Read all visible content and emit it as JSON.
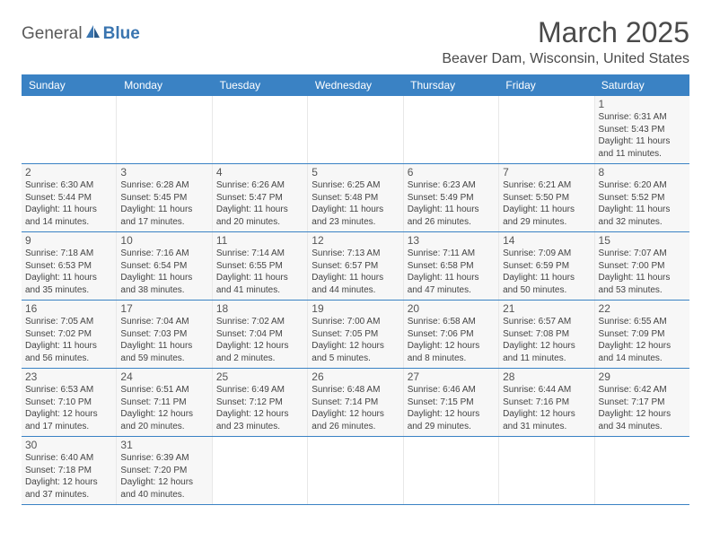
{
  "logo": {
    "part1": "General",
    "part2": "Blue"
  },
  "title": "March 2025",
  "location": "Beaver Dam, Wisconsin, United States",
  "colors": {
    "header_bg": "#3a82c4",
    "header_text": "#ffffff",
    "day_bg": "#f7f7f7",
    "border": "#3a82c4",
    "logo_accent": "#3a75b0",
    "logo_gray": "#5a5a5a"
  },
  "weekdays": [
    "Sunday",
    "Monday",
    "Tuesday",
    "Wednesday",
    "Thursday",
    "Friday",
    "Saturday"
  ],
  "weeks": [
    [
      null,
      null,
      null,
      null,
      null,
      null,
      {
        "n": "1",
        "sr": "Sunrise: 6:31 AM",
        "ss": "Sunset: 5:43 PM",
        "d1": "Daylight: 11 hours",
        "d2": "and 11 minutes."
      }
    ],
    [
      {
        "n": "2",
        "sr": "Sunrise: 6:30 AM",
        "ss": "Sunset: 5:44 PM",
        "d1": "Daylight: 11 hours",
        "d2": "and 14 minutes."
      },
      {
        "n": "3",
        "sr": "Sunrise: 6:28 AM",
        "ss": "Sunset: 5:45 PM",
        "d1": "Daylight: 11 hours",
        "d2": "and 17 minutes."
      },
      {
        "n": "4",
        "sr": "Sunrise: 6:26 AM",
        "ss": "Sunset: 5:47 PM",
        "d1": "Daylight: 11 hours",
        "d2": "and 20 minutes."
      },
      {
        "n": "5",
        "sr": "Sunrise: 6:25 AM",
        "ss": "Sunset: 5:48 PM",
        "d1": "Daylight: 11 hours",
        "d2": "and 23 minutes."
      },
      {
        "n": "6",
        "sr": "Sunrise: 6:23 AM",
        "ss": "Sunset: 5:49 PM",
        "d1": "Daylight: 11 hours",
        "d2": "and 26 minutes."
      },
      {
        "n": "7",
        "sr": "Sunrise: 6:21 AM",
        "ss": "Sunset: 5:50 PM",
        "d1": "Daylight: 11 hours",
        "d2": "and 29 minutes."
      },
      {
        "n": "8",
        "sr": "Sunrise: 6:20 AM",
        "ss": "Sunset: 5:52 PM",
        "d1": "Daylight: 11 hours",
        "d2": "and 32 minutes."
      }
    ],
    [
      {
        "n": "9",
        "sr": "Sunrise: 7:18 AM",
        "ss": "Sunset: 6:53 PM",
        "d1": "Daylight: 11 hours",
        "d2": "and 35 minutes."
      },
      {
        "n": "10",
        "sr": "Sunrise: 7:16 AM",
        "ss": "Sunset: 6:54 PM",
        "d1": "Daylight: 11 hours",
        "d2": "and 38 minutes."
      },
      {
        "n": "11",
        "sr": "Sunrise: 7:14 AM",
        "ss": "Sunset: 6:55 PM",
        "d1": "Daylight: 11 hours",
        "d2": "and 41 minutes."
      },
      {
        "n": "12",
        "sr": "Sunrise: 7:13 AM",
        "ss": "Sunset: 6:57 PM",
        "d1": "Daylight: 11 hours",
        "d2": "and 44 minutes."
      },
      {
        "n": "13",
        "sr": "Sunrise: 7:11 AM",
        "ss": "Sunset: 6:58 PM",
        "d1": "Daylight: 11 hours",
        "d2": "and 47 minutes."
      },
      {
        "n": "14",
        "sr": "Sunrise: 7:09 AM",
        "ss": "Sunset: 6:59 PM",
        "d1": "Daylight: 11 hours",
        "d2": "and 50 minutes."
      },
      {
        "n": "15",
        "sr": "Sunrise: 7:07 AM",
        "ss": "Sunset: 7:00 PM",
        "d1": "Daylight: 11 hours",
        "d2": "and 53 minutes."
      }
    ],
    [
      {
        "n": "16",
        "sr": "Sunrise: 7:05 AM",
        "ss": "Sunset: 7:02 PM",
        "d1": "Daylight: 11 hours",
        "d2": "and 56 minutes."
      },
      {
        "n": "17",
        "sr": "Sunrise: 7:04 AM",
        "ss": "Sunset: 7:03 PM",
        "d1": "Daylight: 11 hours",
        "d2": "and 59 minutes."
      },
      {
        "n": "18",
        "sr": "Sunrise: 7:02 AM",
        "ss": "Sunset: 7:04 PM",
        "d1": "Daylight: 12 hours",
        "d2": "and 2 minutes."
      },
      {
        "n": "19",
        "sr": "Sunrise: 7:00 AM",
        "ss": "Sunset: 7:05 PM",
        "d1": "Daylight: 12 hours",
        "d2": "and 5 minutes."
      },
      {
        "n": "20",
        "sr": "Sunrise: 6:58 AM",
        "ss": "Sunset: 7:06 PM",
        "d1": "Daylight: 12 hours",
        "d2": "and 8 minutes."
      },
      {
        "n": "21",
        "sr": "Sunrise: 6:57 AM",
        "ss": "Sunset: 7:08 PM",
        "d1": "Daylight: 12 hours",
        "d2": "and 11 minutes."
      },
      {
        "n": "22",
        "sr": "Sunrise: 6:55 AM",
        "ss": "Sunset: 7:09 PM",
        "d1": "Daylight: 12 hours",
        "d2": "and 14 minutes."
      }
    ],
    [
      {
        "n": "23",
        "sr": "Sunrise: 6:53 AM",
        "ss": "Sunset: 7:10 PM",
        "d1": "Daylight: 12 hours",
        "d2": "and 17 minutes."
      },
      {
        "n": "24",
        "sr": "Sunrise: 6:51 AM",
        "ss": "Sunset: 7:11 PM",
        "d1": "Daylight: 12 hours",
        "d2": "and 20 minutes."
      },
      {
        "n": "25",
        "sr": "Sunrise: 6:49 AM",
        "ss": "Sunset: 7:12 PM",
        "d1": "Daylight: 12 hours",
        "d2": "and 23 minutes."
      },
      {
        "n": "26",
        "sr": "Sunrise: 6:48 AM",
        "ss": "Sunset: 7:14 PM",
        "d1": "Daylight: 12 hours",
        "d2": "and 26 minutes."
      },
      {
        "n": "27",
        "sr": "Sunrise: 6:46 AM",
        "ss": "Sunset: 7:15 PM",
        "d1": "Daylight: 12 hours",
        "d2": "and 29 minutes."
      },
      {
        "n": "28",
        "sr": "Sunrise: 6:44 AM",
        "ss": "Sunset: 7:16 PM",
        "d1": "Daylight: 12 hours",
        "d2": "and 31 minutes."
      },
      {
        "n": "29",
        "sr": "Sunrise: 6:42 AM",
        "ss": "Sunset: 7:17 PM",
        "d1": "Daylight: 12 hours",
        "d2": "and 34 minutes."
      }
    ],
    [
      {
        "n": "30",
        "sr": "Sunrise: 6:40 AM",
        "ss": "Sunset: 7:18 PM",
        "d1": "Daylight: 12 hours",
        "d2": "and 37 minutes."
      },
      {
        "n": "31",
        "sr": "Sunrise: 6:39 AM",
        "ss": "Sunset: 7:20 PM",
        "d1": "Daylight: 12 hours",
        "d2": "and 40 minutes."
      },
      null,
      null,
      null,
      null,
      null
    ]
  ]
}
